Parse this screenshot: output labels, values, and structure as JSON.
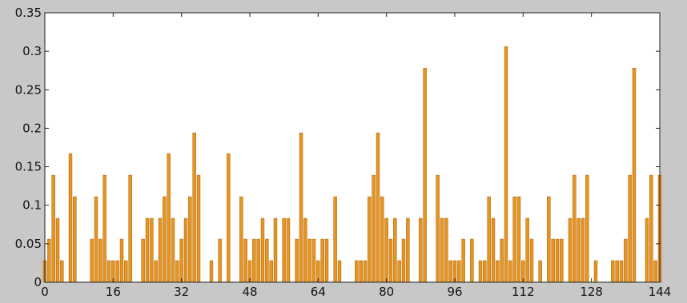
{
  "chart_data": {
    "type": "bar",
    "title": "",
    "xlabel": "",
    "ylabel": "",
    "xlim": [
      0,
      144
    ],
    "ylim": [
      0,
      0.35
    ],
    "x_ticks": [
      0,
      16,
      32,
      48,
      64,
      80,
      96,
      112,
      128,
      144
    ],
    "x_tick_labels": [
      "0",
      "16",
      "32",
      "48",
      "64",
      "80",
      "96",
      "112",
      "128",
      "144"
    ],
    "y_ticks": [
      0,
      0.05,
      0.1,
      0.15,
      0.2,
      0.25,
      0.3,
      0.35
    ],
    "y_tick_labels": [
      "0",
      "0.05",
      "0.1",
      "0.15",
      "0.2",
      "0.25",
      "0.3",
      "0.35"
    ],
    "grid": false,
    "bar_color": "#e89520",
    "bar_edge_color": "#b06a10",
    "axes_background": "#ffffff",
    "figure_background": "#c8c8c8",
    "series": [
      {
        "values": [
          0.028,
          0.056,
          0.139,
          0.083,
          0.028,
          0,
          0.167,
          0.111,
          0,
          0,
          0,
          0.056,
          0.111,
          0.056,
          0.139,
          0.028,
          0.028,
          0.028,
          0.056,
          0.028,
          0.139,
          0,
          0,
          0.056,
          0.083,
          0.083,
          0.028,
          0.083,
          0.111,
          0.167,
          0.083,
          0.028,
          0.056,
          0.083,
          0.111,
          0.194,
          0.139,
          0,
          0,
          0.028,
          0,
          0.056,
          0,
          0.167,
          0,
          0,
          0.111,
          0.056,
          0.028,
          0.056,
          0.056,
          0.083,
          0.056,
          0.028,
          0.083,
          0,
          0.083,
          0.083,
          0,
          0.056,
          0.194,
          0.083,
          0.056,
          0.056,
          0.028,
          0.056,
          0.056,
          0,
          0.111,
          0.028,
          0,
          0,
          0,
          0.028,
          0.028,
          0.028,
          0.111,
          0.139,
          0.194,
          0.111,
          0.083,
          0.056,
          0.083,
          0.028,
          0.056,
          0.083,
          0,
          0,
          0.083,
          0.278,
          0,
          0,
          0.139,
          0.083,
          0.083,
          0.028,
          0.028,
          0.028,
          0.056,
          0,
          0.056,
          0,
          0.028,
          0.028,
          0.111,
          0.083,
          0.028,
          0.056,
          0.306,
          0.028,
          0.111,
          0.111,
          0.028,
          0.083,
          0.056,
          0,
          0.028,
          0,
          0.111,
          0.056,
          0.056,
          0.056,
          0,
          0.083,
          0.139,
          0.083,
          0.083,
          0.139,
          0,
          0.028,
          0,
          0,
          0,
          0.028,
          0.028,
          0.028,
          0.056,
          0.139,
          0.278,
          0,
          0,
          0.083,
          0.139,
          0.028,
          0.139
        ]
      }
    ]
  }
}
